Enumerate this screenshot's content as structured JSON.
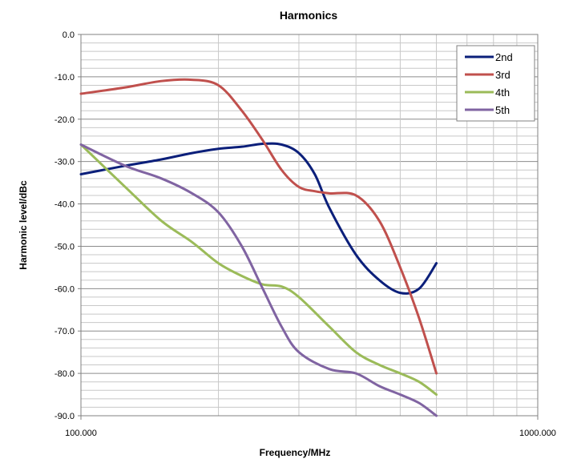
{
  "chart_data": {
    "type": "line",
    "title": "Harmonics",
    "xlabel": "Frequency/MHz",
    "ylabel": "Harmonic level/dBc",
    "x_scale": "log",
    "xlim": [
      100,
      1000
    ],
    "ylim": [
      -90,
      0
    ],
    "x_tick_labels": [
      "100.000",
      "1000.000"
    ],
    "y_ticks": [
      0,
      -10,
      -20,
      -30,
      -40,
      -50,
      -60,
      -70,
      -80,
      -90
    ],
    "y_tick_labels": [
      "0.0",
      "-10.0",
      "-20.0",
      "-30.0",
      "-40.0",
      "-50.0",
      "-60.0",
      "-70.0",
      "-80.0",
      "-90.0"
    ],
    "grid": true,
    "legend_position": "top-right",
    "series": [
      {
        "name": "2nd",
        "color": "#0b1f7a",
        "x": [
          100,
          125,
          150,
          175,
          200,
          225,
          250,
          275,
          300,
          325,
          350,
          400,
          450,
          500,
          550,
          600
        ],
        "y": [
          -33,
          -31,
          -29.5,
          -28,
          -27,
          -26.5,
          -25.8,
          -26,
          -28,
          -33,
          -41,
          -52,
          -58,
          -61,
          -60,
          -54
        ]
      },
      {
        "name": "3rd",
        "color": "#c0504d",
        "x": [
          100,
          125,
          150,
          175,
          200,
          225,
          250,
          275,
          300,
          325,
          350,
          400,
          450,
          500,
          550,
          600
        ],
        "y": [
          -14,
          -12.5,
          -11,
          -10.7,
          -12,
          -18,
          -25,
          -32,
          -36,
          -37,
          -37.5,
          -38,
          -44,
          -55,
          -67,
          -80
        ]
      },
      {
        "name": "4th",
        "color": "#9bbb59",
        "x": [
          100,
          125,
          150,
          175,
          200,
          225,
          250,
          275,
          300,
          350,
          400,
          450,
          500,
          550,
          600
        ],
        "y": [
          -26,
          -36,
          -44,
          -49,
          -54,
          -57,
          -59,
          -59.5,
          -62,
          -69,
          -75,
          -78,
          -80,
          -82,
          -85
        ]
      },
      {
        "name": "5th",
        "color": "#8064a2",
        "x": [
          100,
          125,
          150,
          175,
          200,
          225,
          250,
          275,
          300,
          350,
          400,
          450,
          500,
          550,
          600
        ],
        "y": [
          -26,
          -31,
          -34,
          -37.5,
          -42,
          -50,
          -60,
          -69,
          -75,
          -79,
          -80,
          -83,
          -85,
          -87,
          -90
        ]
      }
    ]
  }
}
